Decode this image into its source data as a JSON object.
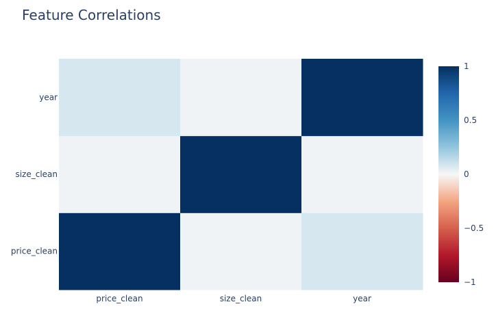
{
  "chart_data": {
    "type": "heatmap",
    "title": "Feature Correlations",
    "xlabel": "",
    "ylabel": "",
    "x": [
      "price_clean",
      "size_clean",
      "year"
    ],
    "y": [
      "price_clean",
      "size_clean",
      "year"
    ],
    "z": [
      [
        1,
        0.02,
        0.08
      ],
      [
        0.02,
        1,
        0.02
      ],
      [
        0.08,
        0.02,
        1
      ]
    ],
    "zlim": [
      -1,
      1
    ],
    "colorscale": "RdBu",
    "colorbar": {
      "ticks": [
        1,
        0.5,
        0,
        -0.5,
        -1
      ],
      "tick_labels": [
        "1",
        "0.5",
        "0",
        "−0.5",
        "−1"
      ]
    },
    "grid": false
  }
}
